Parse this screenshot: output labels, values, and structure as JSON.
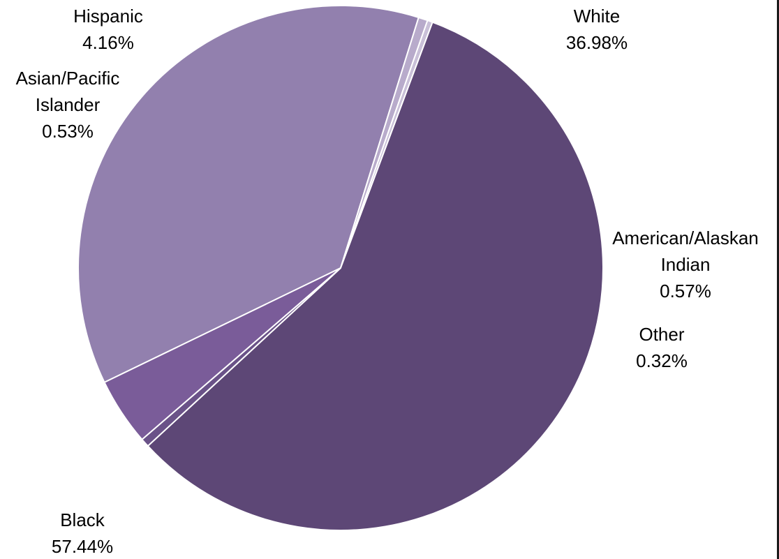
{
  "chart_data": {
    "type": "pie",
    "title": "",
    "start_angle_deg": 244.16,
    "direction": "clockwise",
    "slices": [
      {
        "name": "White",
        "value": 36.98,
        "label": "36.98%",
        "color": "#9280AE"
      },
      {
        "name": "American/Alaskan Indian",
        "value": 0.57,
        "label": "0.57%",
        "color": "#B8ABCB"
      },
      {
        "name": "Other",
        "value": 0.32,
        "label": "0.32%",
        "color": "#C9C0D8"
      },
      {
        "name": "Black",
        "value": 57.44,
        "label": "57.44%",
        "color": "#5D4776"
      },
      {
        "name": "Asian/Pacific Islander",
        "value": 0.53,
        "label": "0.53%",
        "color": "#6A5288"
      },
      {
        "name": "Hispanic",
        "value": 4.16,
        "label": "4.16%",
        "color": "#7A5C99"
      }
    ],
    "legend": "none",
    "data_labels": "outside"
  }
}
